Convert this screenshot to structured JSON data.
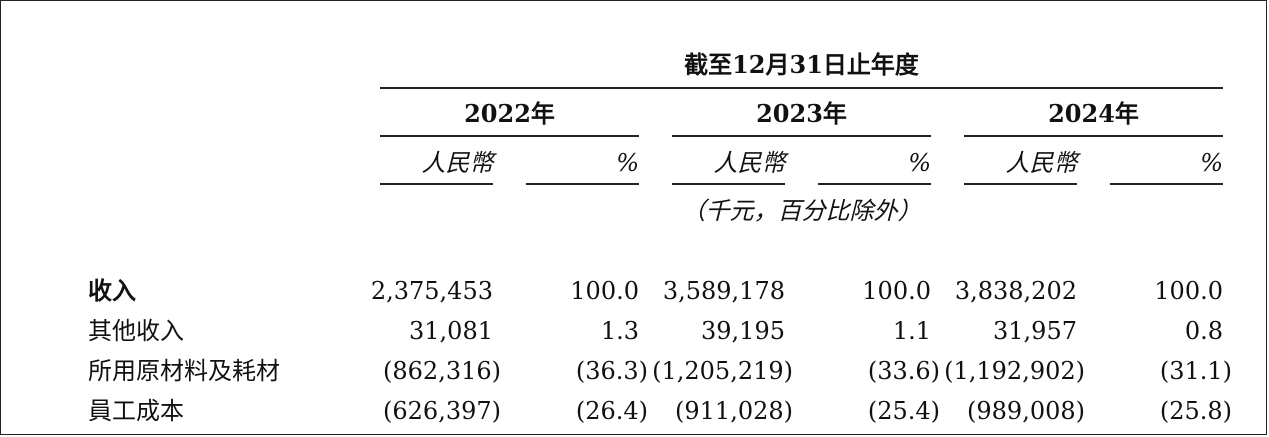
{
  "header": {
    "period": "截至12月31日止年度",
    "years": [
      "2022年",
      "2023年",
      "2024年"
    ],
    "col_rmb": "人民幣",
    "col_pct": "%",
    "unit_note": "（千元，百分比除外）"
  },
  "rows": [
    {
      "label": "收入",
      "bold": true,
      "v2022": "2,375,453",
      "p2022": "100.0",
      "v2023": "3,589,178",
      "p2023": "100.0",
      "v2024": "3,838,202",
      "p2024": "100.0"
    },
    {
      "label": "其他收入",
      "bold": false,
      "v2022": "31,081",
      "p2022": "1.3",
      "v2023": "39,195",
      "p2023": "1.1",
      "v2024": "31,957",
      "p2024": "0.8"
    },
    {
      "label": "所用原材料及耗材",
      "bold": false,
      "v2022": "(862,316)",
      "p2022": "(36.3)",
      "v2023": "(1,205,219)",
      "p2023": "(33.6)",
      "v2024": "(1,192,902)",
      "p2024": "(31.1)"
    },
    {
      "label": "員工成本",
      "bold": false,
      "v2022": "(626,397)",
      "p2022": "(26.4)",
      "v2023": "(911,028)",
      "p2023": "(25.4)",
      "v2024": "(989,008)",
      "p2024": "(25.8)"
    }
  ]
}
